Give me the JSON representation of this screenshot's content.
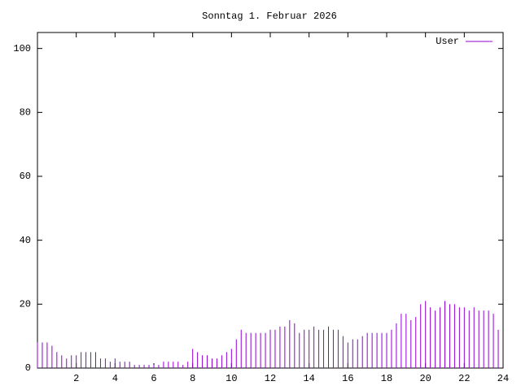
{
  "chart_data": {
    "type": "impulses",
    "title": "Sonntag 1. Februar 2026",
    "x": [
      0,
      0.25,
      0.5,
      0.75,
      1,
      1.25,
      1.5,
      1.75,
      2,
      2.25,
      2.5,
      2.75,
      3,
      3.25,
      3.5,
      3.75,
      4,
      4.25,
      4.5,
      4.75,
      5,
      5.25,
      5.5,
      5.75,
      6,
      6.25,
      6.5,
      6.75,
      7,
      7.25,
      7.5,
      7.75,
      8,
      8.25,
      8.5,
      8.75,
      9,
      9.25,
      9.5,
      9.75,
      10,
      10.25,
      10.5,
      10.75,
      11,
      11.25,
      11.5,
      11.75,
      12,
      12.25,
      12.5,
      12.75,
      13,
      13.25,
      13.5,
      13.75,
      14,
      14.25,
      14.5,
      14.75,
      15,
      15.25,
      15.5,
      15.75,
      16,
      16.25,
      16.5,
      16.75,
      17,
      17.25,
      17.5,
      17.75,
      18,
      18.25,
      18.5,
      18.75,
      19,
      19.25,
      19.5,
      19.75,
      20,
      20.25,
      20.5,
      20.75,
      21,
      21.25,
      21.5,
      21.75,
      22,
      22.25,
      22.5,
      22.75,
      23,
      23.25,
      23.5,
      23.75
    ],
    "series": [
      {
        "name": "User",
        "color": "#9400d3",
        "values": [
          8,
          8,
          8,
          7,
          5,
          4,
          3,
          4,
          4,
          5,
          5,
          5,
          5,
          3,
          3,
          2,
          3,
          2,
          2,
          2,
          1,
          1,
          1,
          1,
          1,
          1,
          2,
          2,
          2,
          2,
          1,
          2,
          6,
          5,
          4,
          4,
          3,
          3,
          4,
          5,
          6,
          9,
          12,
          11,
          11,
          11,
          11,
          11,
          12,
          12,
          13,
          13,
          15,
          14,
          11,
          12,
          12,
          13,
          12,
          12,
          13,
          12,
          12,
          10,
          8,
          9,
          9,
          10,
          11,
          11,
          11,
          11,
          11,
          12,
          14,
          17,
          17,
          15,
          16,
          20,
          21,
          19,
          18,
          19,
          21,
          20,
          20,
          19,
          19,
          18,
          19,
          18,
          18,
          18,
          17,
          12
        ]
      }
    ],
    "xlim": [
      0,
      24
    ],
    "xticks": [
      2,
      4,
      6,
      8,
      10,
      12,
      14,
      16,
      18,
      20,
      22,
      24
    ],
    "ylim": [
      0,
      105
    ],
    "yticks": [
      0,
      20,
      40,
      60,
      80,
      100
    ],
    "legend": "top right"
  }
}
